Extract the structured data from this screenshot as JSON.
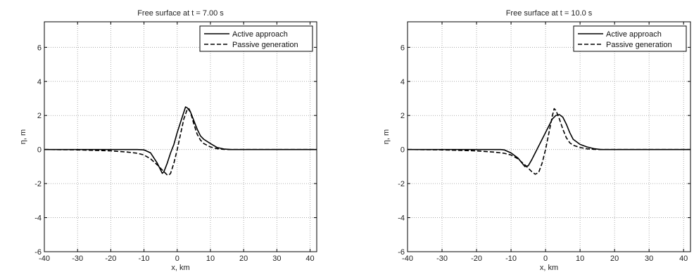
{
  "chart_data": [
    {
      "type": "line",
      "title": "Free surface at t = 7.00 s",
      "xlabel": "x, km",
      "ylabel": "η, m",
      "xlim": [
        -40,
        42
      ],
      "ylim": [
        -6,
        7.5
      ],
      "xticks": [
        -40,
        -30,
        -20,
        -10,
        0,
        10,
        20,
        30,
        40
      ],
      "yticks": [
        -6,
        -4,
        -2,
        0,
        2,
        4,
        6
      ],
      "grid": true,
      "legend_position": "top-right",
      "series": [
        {
          "name": "Active approach",
          "style": "solid",
          "x": [
            -40,
            -30,
            -20,
            -15,
            -12,
            -10,
            -8,
            -6,
            -4.5,
            -4,
            -3,
            -2,
            -1,
            0,
            1,
            2,
            2.5,
            3,
            4,
            5,
            6,
            7,
            8,
            10,
            12,
            14,
            16,
            20,
            30,
            42
          ],
          "y": [
            0,
            0,
            0,
            0,
            0,
            -0.02,
            -0.2,
            -0.8,
            -1.4,
            -1.3,
            -0.8,
            -0.2,
            0.3,
            1.0,
            1.6,
            2.2,
            2.5,
            2.45,
            2.2,
            1.7,
            1.2,
            0.8,
            0.6,
            0.35,
            0.12,
            0.03,
            0,
            0,
            0,
            0
          ]
        },
        {
          "name": "Passive generation",
          "style": "dashed",
          "x": [
            -40,
            -30,
            -20,
            -15,
            -12,
            -10,
            -8,
            -6,
            -4,
            -3,
            -2.5,
            -2,
            -1,
            0,
            1,
            2,
            3,
            3.5,
            4,
            5,
            6,
            7,
            8,
            10,
            12,
            14,
            16,
            20,
            30,
            42
          ],
          "y": [
            0,
            -0.02,
            -0.08,
            -0.15,
            -0.22,
            -0.32,
            -0.55,
            -0.9,
            -1.3,
            -1.5,
            -1.5,
            -1.4,
            -0.8,
            0,
            0.9,
            1.8,
            2.35,
            2.4,
            2.2,
            1.5,
            0.9,
            0.55,
            0.35,
            0.15,
            0.05,
            0.01,
            0,
            0,
            0,
            0
          ]
        }
      ]
    },
    {
      "type": "line",
      "title": "Free surface at t = 10.0 s",
      "xlabel": "x, km",
      "ylabel": "η, m",
      "xlim": [
        -40,
        42
      ],
      "ylim": [
        -6,
        7.5
      ],
      "xticks": [
        -40,
        -30,
        -20,
        -10,
        0,
        10,
        20,
        30,
        40
      ],
      "yticks": [
        -6,
        -4,
        -2,
        0,
        2,
        4,
        6
      ],
      "grid": true,
      "legend_position": "top-right",
      "series": [
        {
          "name": "Active approach",
          "style": "solid",
          "x": [
            -40,
            -30,
            -20,
            -15,
            -13,
            -12,
            -10,
            -8,
            -6,
            -5,
            -4,
            -3,
            -2,
            -1,
            0,
            1,
            2,
            3,
            4,
            5,
            6,
            7,
            8,
            10,
            12,
            14,
            16,
            20,
            30,
            42
          ],
          "y": [
            0,
            0,
            0,
            0,
            0,
            -0.02,
            -0.2,
            -0.5,
            -1.0,
            -0.95,
            -0.6,
            -0.2,
            0.2,
            0.6,
            1.0,
            1.4,
            1.8,
            2.0,
            2.05,
            1.9,
            1.5,
            1.0,
            0.6,
            0.3,
            0.15,
            0.05,
            0,
            0,
            0,
            0
          ]
        },
        {
          "name": "Passive generation",
          "style": "dashed",
          "x": [
            -40,
            -30,
            -20,
            -15,
            -12,
            -10,
            -8,
            -6,
            -4,
            -3,
            -2,
            -1,
            0,
            1,
            2,
            2.5,
            3,
            4,
            5,
            6,
            7,
            8,
            10,
            12,
            14,
            16,
            20,
            30,
            42
          ],
          "y": [
            0,
            -0.02,
            -0.08,
            -0.15,
            -0.22,
            -0.32,
            -0.55,
            -0.9,
            -1.3,
            -1.45,
            -1.35,
            -0.8,
            0,
            1.0,
            2.0,
            2.4,
            2.3,
            1.8,
            1.2,
            0.7,
            0.4,
            0.25,
            0.12,
            0.04,
            0.01,
            0,
            0,
            0,
            0
          ]
        }
      ]
    }
  ]
}
